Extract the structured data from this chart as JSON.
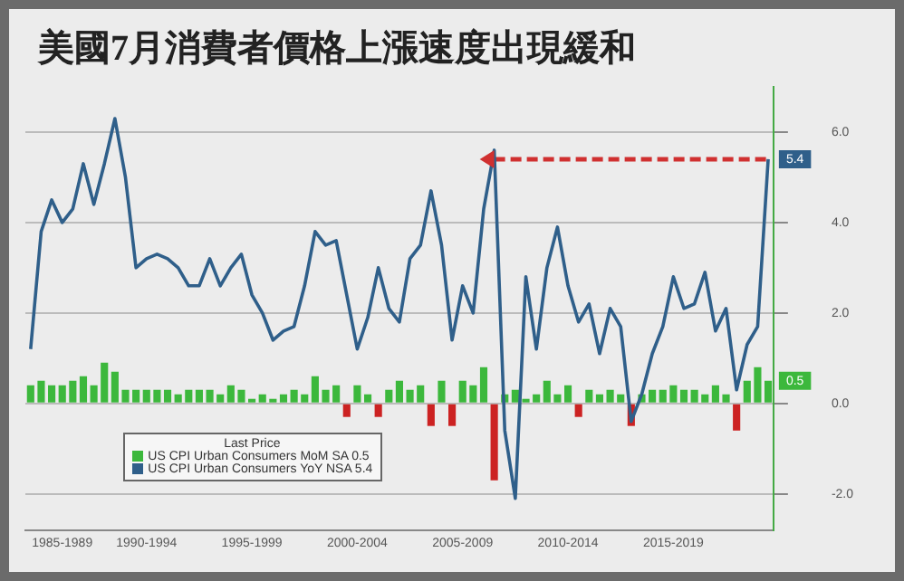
{
  "chart_data": {
    "type": "line",
    "title": "美國7月消費者價格上漲速度出現緩和",
    "legend_title": "Last Price",
    "legend": "bottom left",
    "grid": "y",
    "marker": "none",
    "categories": [
      null,
      null,
      null,
      "1985-1989",
      null,
      null,
      null,
      null,
      null,
      null,
      null,
      "1990-1994",
      null,
      null,
      null,
      null,
      null,
      null,
      null,
      null,
      null,
      "1995-1999",
      null,
      null,
      null,
      null,
      null,
      null,
      null,
      null,
      null,
      "2000-2004",
      null,
      null,
      null,
      null,
      null,
      null,
      null,
      null,
      null,
      "2005-2009",
      null,
      null,
      null,
      null,
      null,
      null,
      null,
      null,
      null,
      "2010-2014",
      null,
      null,
      null,
      null,
      null,
      null,
      null,
      null,
      null,
      "2015-2019",
      null,
      null,
      null,
      null,
      null,
      null,
      null,
      null,
      null
    ],
    "ylim": [
      -2.8,
      7.0
    ],
    "yticks": [
      {
        "value": -2,
        "label": "-2.0"
      },
      {
        "value": 0,
        "label": "0.0"
      },
      {
        "value": 2,
        "label": "2.0"
      },
      {
        "value": 4,
        "label": "4.0"
      },
      {
        "value": 6,
        "label": "6.0"
      }
    ],
    "series": [
      {
        "type": "bar",
        "name": "US CPI Urban Consumers MoM SA  0.5",
        "color": "#3cb83c",
        "values": [
          0.4,
          0.5,
          0.4,
          0.4,
          0.5,
          0.6,
          0.4,
          0.9,
          0.7,
          0.3,
          0.3,
          0.3,
          0.3,
          0.3,
          0.2,
          0.3,
          0.3,
          0.3,
          0.2,
          0.4,
          0.3,
          0.1,
          0.2,
          0.1,
          0.2,
          0.3,
          0.2,
          0.6,
          0.3,
          0.4,
          -0.3,
          0.4,
          0.2,
          -0.3,
          0.3,
          0.5,
          0.3,
          0.4,
          -0.5,
          0.5,
          -0.5,
          0.5,
          0.4,
          0.8,
          -1.7,
          0.2,
          0.3,
          0.1,
          0.2,
          0.5,
          0.2,
          0.4,
          -0.3,
          0.3,
          0.2,
          0.3,
          0.2,
          -0.5,
          0.2,
          0.3,
          0.3,
          0.4,
          0.3,
          0.3,
          0.2,
          0.4,
          0.2,
          -0.6,
          0.5,
          0.8,
          0.5
        ],
        "value_labels": [
          null,
          null,
          null,
          null,
          null,
          null,
          null,
          null,
          null,
          null,
          null,
          null,
          null,
          null,
          null,
          null,
          null,
          null,
          null,
          null,
          null,
          null,
          null,
          null,
          null,
          null,
          null,
          null,
          null,
          null,
          null,
          null,
          null,
          null,
          null,
          null,
          null,
          null,
          null,
          null,
          null,
          null,
          null,
          null,
          null,
          null,
          null,
          null,
          null,
          null,
          null,
          null,
          null,
          null,
          null,
          null,
          null,
          null,
          null,
          null,
          null,
          null,
          null,
          null,
          null,
          null,
          null,
          null,
          null,
          null,
          "0.5"
        ],
        "colors": [
          "#3cb83c",
          "#3cb83c",
          "#3cb83c",
          "#3cb83c",
          "#3cb83c",
          "#3cb83c",
          "#3cb83c",
          "#3cb83c",
          "#3cb83c",
          "#3cb83c",
          "#3cb83c",
          "#3cb83c",
          "#3cb83c",
          "#3cb83c",
          "#3cb83c",
          "#3cb83c",
          "#3cb83c",
          "#3cb83c",
          "#3cb83c",
          "#3cb83c",
          "#3cb83c",
          "#3cb83c",
          "#3cb83c",
          "#3cb83c",
          "#3cb83c",
          "#3cb83c",
          "#3cb83c",
          "#3cb83c",
          "#3cb83c",
          "#3cb83c",
          "#cc2222",
          "#3cb83c",
          "#3cb83c",
          "#cc2222",
          "#3cb83c",
          "#3cb83c",
          "#3cb83c",
          "#3cb83c",
          "#cc2222",
          "#3cb83c",
          "#cc2222",
          "#3cb83c",
          "#3cb83c",
          "#3cb83c",
          "#cc2222",
          "#3cb83c",
          "#3cb83c",
          "#3cb83c",
          "#3cb83c",
          "#3cb83c",
          "#3cb83c",
          "#3cb83c",
          "#cc2222",
          "#3cb83c",
          "#3cb83c",
          "#3cb83c",
          "#3cb83c",
          "#cc2222",
          "#3cb83c",
          "#3cb83c",
          "#3cb83c",
          "#3cb83c",
          "#3cb83c",
          "#3cb83c",
          "#3cb83c",
          "#3cb83c",
          "#3cb83c",
          "#cc2222",
          "#3cb83c",
          "#3cb83c",
          "#3cb83c"
        ]
      },
      {
        "name": "US CPI Urban Consumers YoY NSA  5.4",
        "color": "#2f5f8a",
        "values": [
          1.2,
          3.8,
          4.5,
          4.0,
          4.3,
          5.3,
          4.4,
          5.3,
          6.3,
          5.0,
          3.0,
          3.2,
          3.3,
          3.2,
          3.0,
          2.6,
          2.6,
          3.2,
          2.6,
          3.0,
          3.3,
          2.4,
          2.0,
          1.4,
          1.6,
          1.7,
          2.6,
          3.8,
          3.5,
          3.6,
          2.4,
          1.2,
          1.9,
          3.0,
          2.1,
          1.8,
          3.2,
          3.5,
          4.7,
          3.5,
          1.4,
          2.6,
          2.0,
          4.3,
          5.6,
          -0.6,
          -2.1,
          2.8,
          1.2,
          3.0,
          3.9,
          2.6,
          1.8,
          2.2,
          1.1,
          2.1,
          1.7,
          -0.4,
          0.2,
          1.1,
          1.7,
          2.8,
          2.1,
          2.2,
          2.9,
          1.6,
          2.1,
          0.3,
          1.3,
          1.7,
          5.4
        ],
        "value_labels": [
          null,
          null,
          null,
          null,
          null,
          null,
          null,
          null,
          null,
          null,
          null,
          null,
          null,
          null,
          null,
          null,
          null,
          null,
          null,
          null,
          null,
          null,
          null,
          null,
          null,
          null,
          null,
          null,
          null,
          null,
          null,
          null,
          null,
          null,
          null,
          null,
          null,
          null,
          null,
          null,
          null,
          null,
          null,
          null,
          null,
          null,
          null,
          null,
          null,
          null,
          null,
          null,
          null,
          null,
          null,
          null,
          null,
          null,
          null,
          null,
          null,
          null,
          null,
          null,
          null,
          null,
          null,
          null,
          null,
          null,
          "5.4"
        ]
      },
      {
        "color": "#d03030",
        "line_style": "dashed",
        "values": [
          null,
          null,
          null,
          null,
          null,
          null,
          null,
          null,
          null,
          null,
          null,
          null,
          null,
          null,
          null,
          null,
          null,
          null,
          null,
          null,
          null,
          null,
          null,
          null,
          null,
          null,
          null,
          null,
          null,
          null,
          null,
          null,
          null,
          null,
          null,
          null,
          null,
          null,
          null,
          null,
          null,
          null,
          null,
          null,
          5.4,
          5.4,
          5.4,
          5.4,
          5.4,
          5.4,
          5.4,
          5.4,
          5.4,
          5.4,
          5.4,
          5.4,
          5.4,
          5.4,
          5.4,
          5.4,
          5.4,
          5.4,
          5.4,
          5.4,
          5.4,
          5.4,
          5.4,
          5.4,
          5.4,
          5.4,
          5.4
        ]
      }
    ]
  }
}
